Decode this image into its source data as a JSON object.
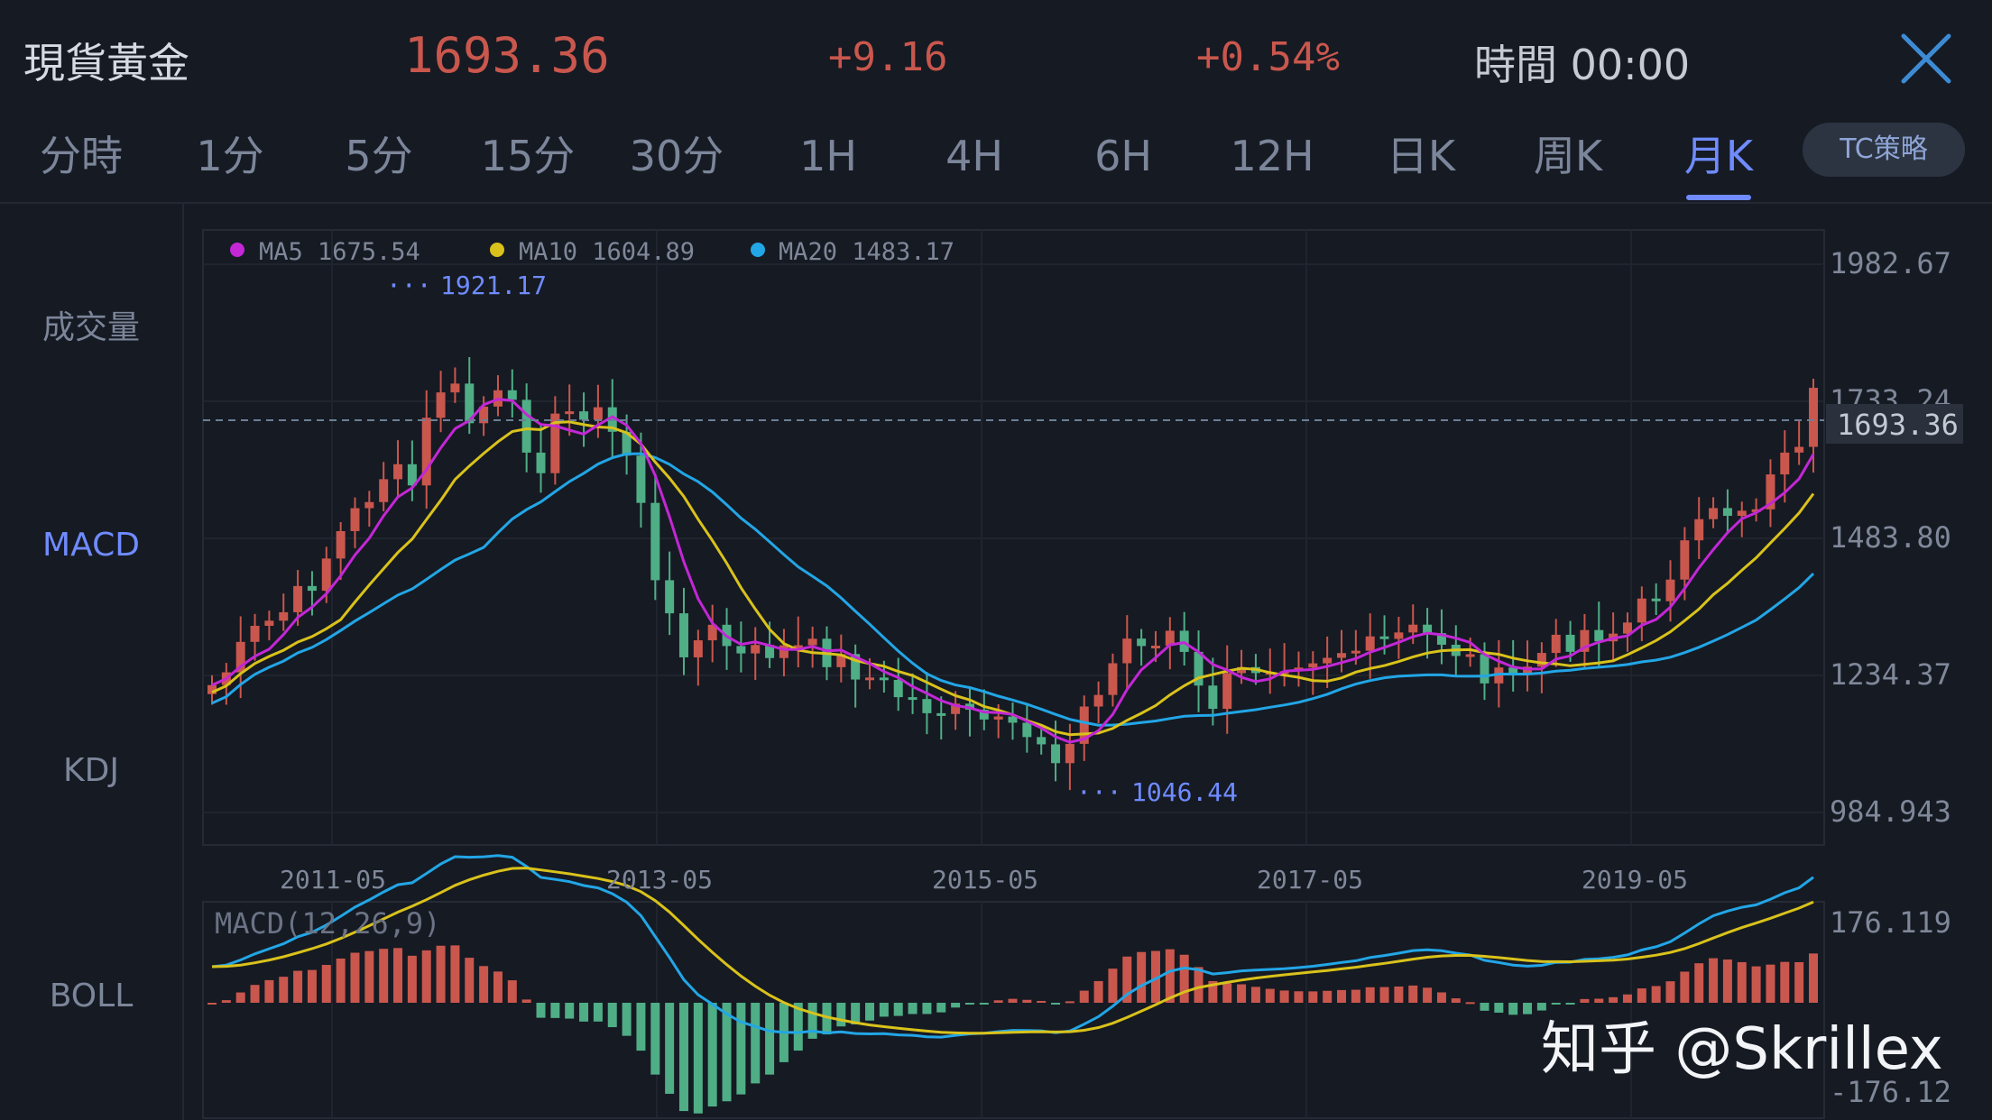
{
  "header": {
    "symbol": "現貨黃金",
    "price": "1693.36",
    "change": "+9.16",
    "change_pct": "+0.54%",
    "time": "時間 00:00",
    "close_icon": "close-icon"
  },
  "tabs": [
    "分時",
    "1分",
    "5分",
    "15分",
    "30分",
    "1H",
    "4H",
    "6H",
    "12H",
    "日K",
    "周K",
    "月K"
  ],
  "active_tab": "月K",
  "strategy_button": "TC策略",
  "sidebar": [
    "成交量",
    "MACD",
    "KDJ",
    "BOLL"
  ],
  "sidebar_active": "MACD",
  "legend": {
    "ma5": "MA5 1675.54",
    "ma10": "MA10 1604.89",
    "ma20": "MA20 1483.17"
  },
  "colors": {
    "up": "#c9574d",
    "down": "#4fae86",
    "ma5": "#c327d6",
    "ma10": "#d9c21b",
    "ma20": "#22a6e6",
    "accent": "#6f8bff"
  },
  "price_axis": [
    "1982.67",
    "1733.24",
    "1483.80",
    "1234.37",
    "984.943"
  ],
  "current_price_label": "1693.36",
  "max_label": "1921.17",
  "min_label": "1046.44",
  "date_axis": [
    "2011-05",
    "2013-05",
    "2015-05",
    "2017-05",
    "2019-05"
  ],
  "macd_panel": {
    "label": "MACD(12,26,9)",
    "top": "176.119",
    "bottom": "-176.12"
  },
  "watermark": "知乎 @Skrillex"
}
